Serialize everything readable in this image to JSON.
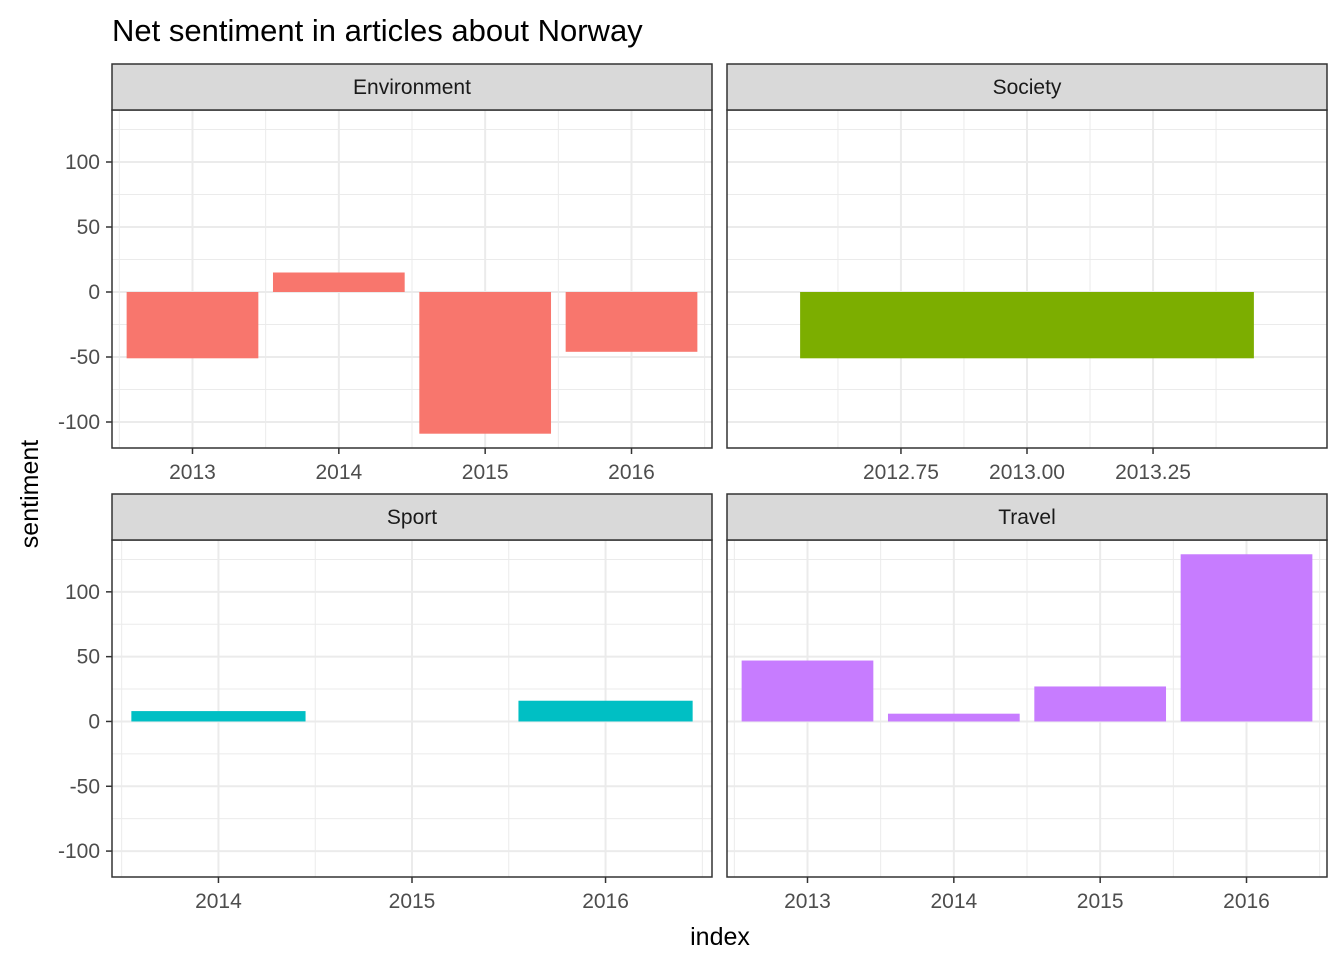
{
  "chart_data": {
    "type": "bar",
    "title": "Net sentiment in articles about Norway",
    "xlabel": "index",
    "ylabel": "sentiment",
    "ylim": [
      -120,
      140
    ],
    "y_ticks": [
      100,
      50,
      0,
      -50,
      -100
    ],
    "grid": true,
    "facets": [
      {
        "name": "Environment",
        "color": "#F8766D",
        "xlim": [
          2012.45,
          2016.55
        ],
        "x_ticks": [
          2013,
          2014,
          2015,
          2016
        ],
        "x_tick_labels": [
          "2013",
          "2014",
          "2015",
          "2016"
        ],
        "points": [
          {
            "x": 2013,
            "y": -51
          },
          {
            "x": 2014,
            "y": 15
          },
          {
            "x": 2015,
            "y": -109
          },
          {
            "x": 2016,
            "y": -46
          }
        ]
      },
      {
        "name": "Society",
        "color": "#7CAE00",
        "xlim": [
          2012.405,
          2013.595
        ],
        "x_ticks": [
          2012.75,
          2013.0,
          2013.25
        ],
        "x_tick_labels": [
          "2012.75",
          "2013.00",
          "2013.25"
        ],
        "points": [
          {
            "x": 2013,
            "y": -51
          }
        ]
      },
      {
        "name": "Sport",
        "color": "#00BFC4",
        "xlim": [
          2013.45,
          2016.55
        ],
        "x_ticks": [
          2014,
          2015,
          2016
        ],
        "x_tick_labels": [
          "2014",
          "2015",
          "2016"
        ],
        "points": [
          {
            "x": 2014,
            "y": 8
          },
          {
            "x": 2016,
            "y": 16
          }
        ]
      },
      {
        "name": "Travel",
        "color": "#C77CFF",
        "xlim": [
          2012.45,
          2016.55
        ],
        "x_ticks": [
          2013,
          2014,
          2015,
          2016
        ],
        "x_tick_labels": [
          "2013",
          "2014",
          "2015",
          "2016"
        ],
        "points": [
          {
            "x": 2013,
            "y": 47
          },
          {
            "x": 2014,
            "y": 6
          },
          {
            "x": 2015,
            "y": 27
          },
          {
            "x": 2016,
            "y": 129
          }
        ]
      }
    ]
  }
}
